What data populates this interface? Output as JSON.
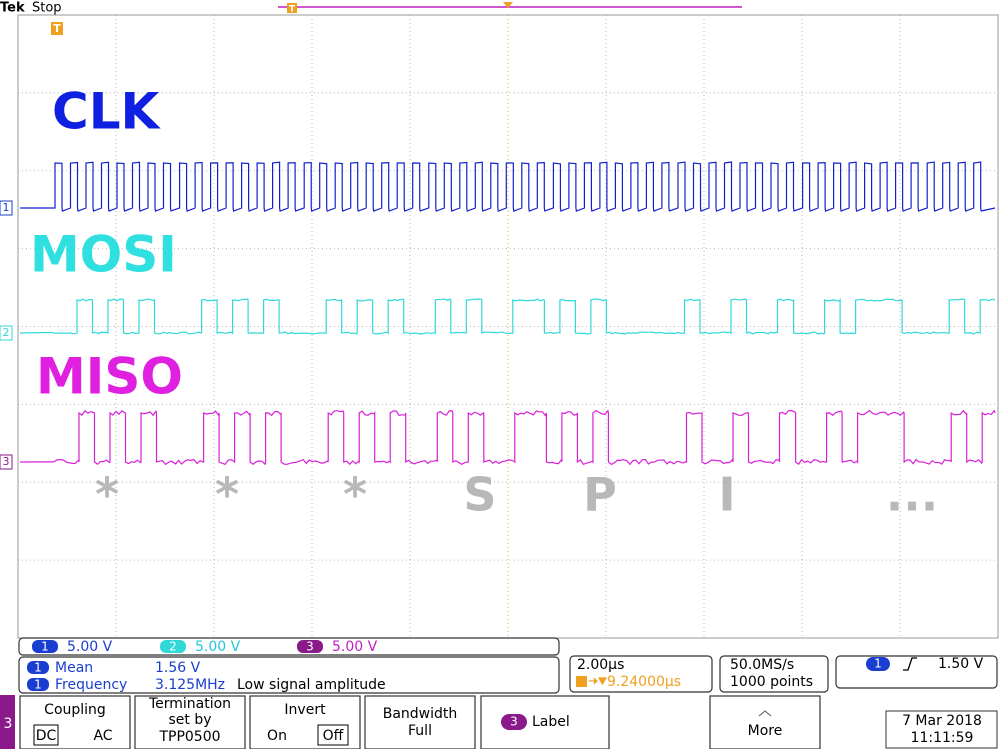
{
  "header": {
    "brand": "Tek",
    "status": "Stop"
  },
  "trigger_marker": "T",
  "channels": [
    {
      "number": "1",
      "label": "CLK",
      "scale": "5.00 V"
    },
    {
      "number": "2",
      "label": "MOSI",
      "scale": "5.00 V"
    },
    {
      "number": "3",
      "label": "MISO",
      "scale": "5.00 V"
    }
  ],
  "decoded": [
    "*",
    "*",
    "*",
    "S",
    "P",
    "I",
    "..."
  ],
  "measurements": [
    {
      "channel": "1",
      "name": "Mean",
      "value": "1.56 V"
    },
    {
      "channel": "1",
      "name": "Frequency",
      "value": "3.125MHz",
      "note": "Low signal amplitude"
    }
  ],
  "timebase": {
    "scale": "2.00µs",
    "position": "9.24000µs"
  },
  "acquisition": {
    "rate": "50.0MS/s",
    "record": "1000 points"
  },
  "trigger": {
    "channel": "1",
    "level": "1.50 V"
  },
  "menu": {
    "channel": "3",
    "coupling": {
      "title": "Coupling",
      "options": [
        "DC",
        "AC"
      ]
    },
    "termination": {
      "lines": [
        "Termination",
        "set by",
        "TPP0500"
      ]
    },
    "invert": {
      "title": "Invert",
      "options": [
        "On",
        "Off"
      ]
    },
    "bandwidth": {
      "lines": [
        "Bandwidth",
        "Full"
      ]
    },
    "label": {
      "channel": "3",
      "text": "Label"
    },
    "more": "More"
  },
  "datetime": {
    "date": "7 Mar 2018",
    "time": "11:11:59"
  }
}
